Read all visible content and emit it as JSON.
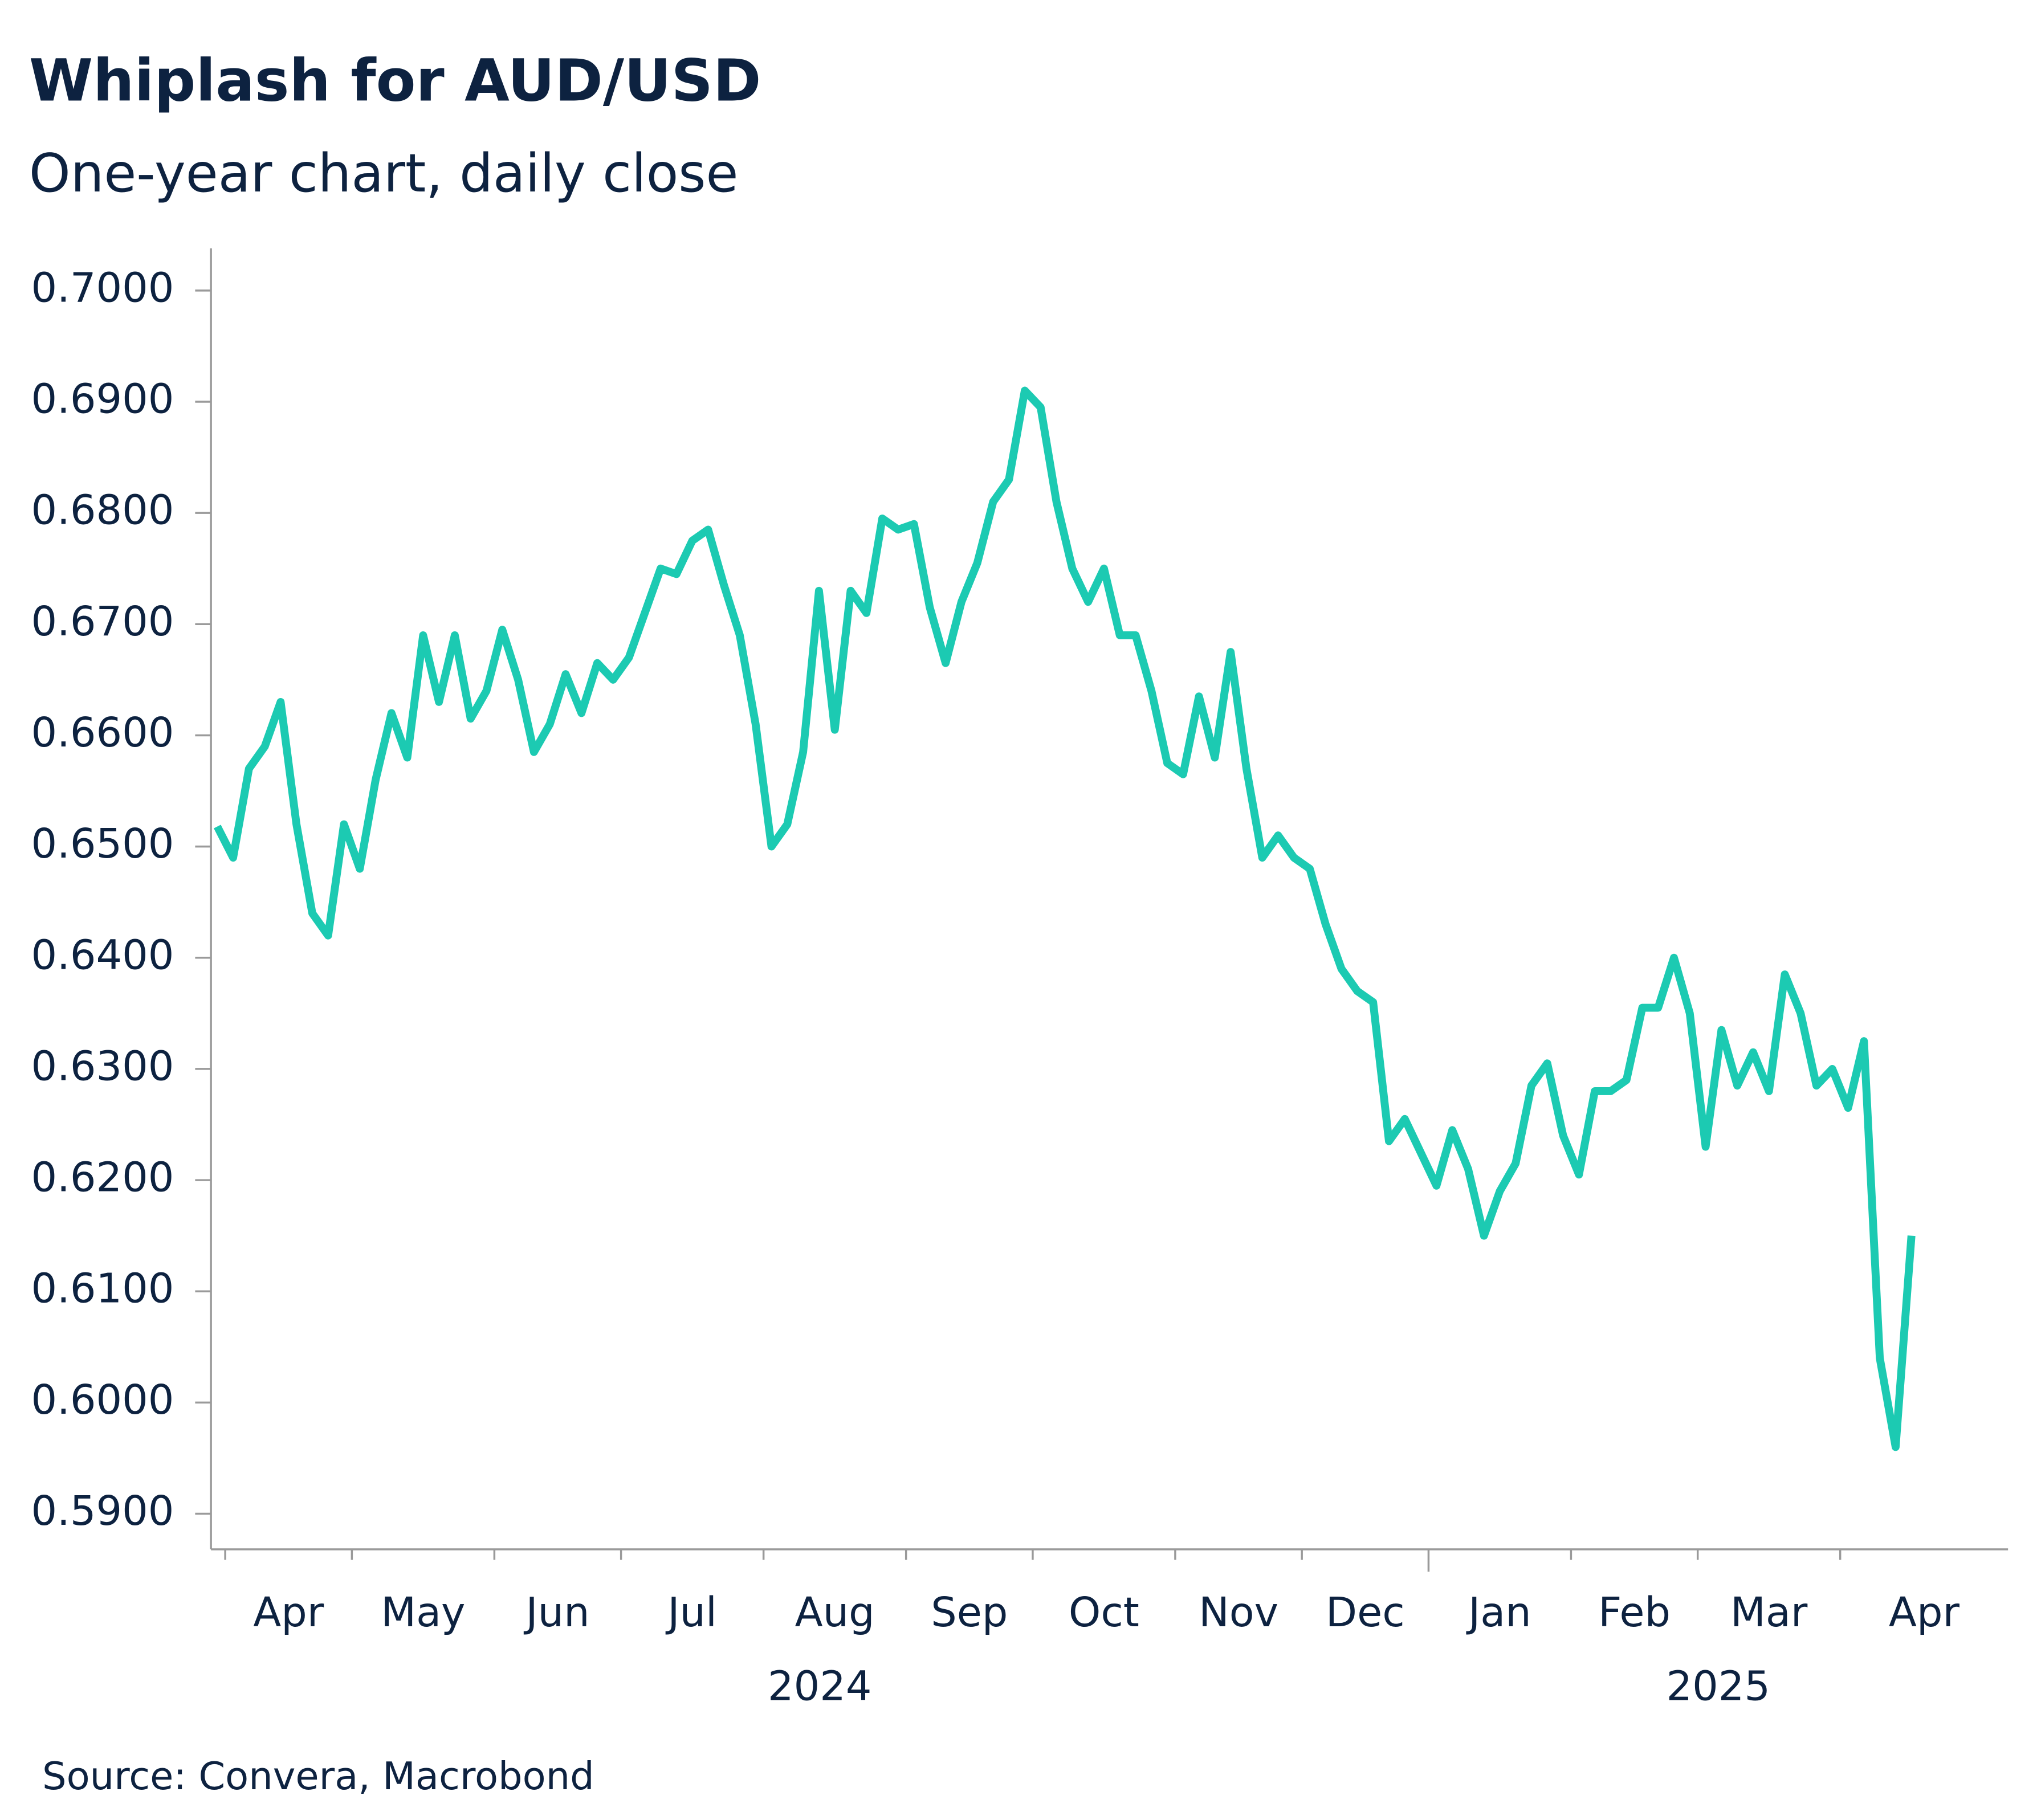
{
  "chart_data": {
    "type": "line",
    "title": "Whiplash for AUD/USD",
    "subtitle": "One-year chart, daily close",
    "source": "Source: Convera, Macrobond",
    "x": [
      "2024-03",
      "2024-04",
      "2024-04",
      "2024-04",
      "2024-04",
      "2024-04",
      "2024-04",
      "2024-04",
      "2024-04",
      "2024-05",
      "2024-05",
      "2024-05",
      "2024-05",
      "2024-05",
      "2024-05",
      "2024-05",
      "2024-05",
      "2024-05",
      "2024-06",
      "2024-06",
      "2024-06",
      "2024-06",
      "2024-06",
      "2024-06",
      "2024-06",
      "2024-06",
      "2024-07",
      "2024-07",
      "2024-07",
      "2024-07",
      "2024-07",
      "2024-07",
      "2024-07",
      "2024-07",
      "2024-07",
      "2024-08",
      "2024-08",
      "2024-08",
      "2024-08",
      "2024-08",
      "2024-08",
      "2024-08",
      "2024-08",
      "2024-08",
      "2024-09",
      "2024-09",
      "2024-09",
      "2024-09",
      "2024-09",
      "2024-09",
      "2024-09",
      "2024-09",
      "2024-10",
      "2024-10",
      "2024-10",
      "2024-10",
      "2024-10",
      "2024-10",
      "2024-10",
      "2024-10",
      "2024-10",
      "2024-11",
      "2024-11",
      "2024-11",
      "2024-11",
      "2024-11",
      "2024-11",
      "2024-11",
      "2024-11",
      "2024-12",
      "2024-12",
      "2024-12",
      "2024-12",
      "2024-12",
      "2024-12",
      "2024-12",
      "2024-12",
      "2025-01",
      "2025-01",
      "2025-01",
      "2025-01",
      "2025-01",
      "2025-01",
      "2025-01",
      "2025-01",
      "2025-01",
      "2025-02",
      "2025-02",
      "2025-02",
      "2025-02",
      "2025-02",
      "2025-02",
      "2025-02",
      "2025-02",
      "2025-03",
      "2025-03",
      "2025-03",
      "2025-03",
      "2025-03",
      "2025-03",
      "2025-03",
      "2025-03",
      "2025-03",
      "2025-04",
      "2025-04",
      "2025-04",
      "2025-04",
      "2025-04"
    ],
    "series": [
      {
        "name": "AUD/USD",
        "color": "#1ccab2",
        "values": [
          0.6518,
          0.649,
          0.657,
          0.659,
          0.663,
          0.652,
          0.644,
          0.642,
          0.652,
          0.648,
          0.656,
          0.662,
          0.658,
          0.669,
          0.663,
          0.669,
          0.6615,
          0.664,
          0.6695,
          0.665,
          0.6585,
          0.661,
          0.6655,
          0.662,
          0.6665,
          0.665,
          0.667,
          0.671,
          0.675,
          0.6745,
          0.6775,
          0.6785,
          0.6735,
          0.669,
          0.661,
          0.65,
          0.652,
          0.6585,
          0.673,
          0.6605,
          0.673,
          0.671,
          0.6795,
          0.6785,
          0.679,
          0.6715,
          0.6665,
          0.672,
          0.6755,
          0.681,
          0.683,
          0.691,
          0.6895,
          0.681,
          0.675,
          0.672,
          0.675,
          0.669,
          0.669,
          0.664,
          0.6575,
          0.6565,
          0.6635,
          0.658,
          0.6675,
          0.657,
          0.649,
          0.651,
          0.649,
          0.648,
          0.643,
          0.639,
          0.637,
          0.636,
          0.6235,
          0.6255,
          0.6225,
          0.6195,
          0.6245,
          0.621,
          0.615,
          0.619,
          0.6215,
          0.6285,
          0.6305,
          0.624,
          0.6205,
          0.628,
          0.628,
          0.629,
          0.6355,
          0.6355,
          0.64,
          0.635,
          0.623,
          0.6335,
          0.6285,
          0.6315,
          0.628,
          0.6385,
          0.635,
          0.6285,
          0.63,
          0.6265,
          0.6325,
          0.604,
          0.596,
          0.615
        ]
      }
    ],
    "month_labels": [
      null,
      "Apr",
      "May",
      "Jun",
      "Jul",
      "Aug",
      "Sep",
      "Oct",
      "Nov",
      "Dec",
      "Jan",
      "Feb",
      "Mar",
      "Apr"
    ],
    "year_labels": [
      "2024",
      "2025"
    ],
    "ylim": [
      0.5868,
      0.7038
    ],
    "yticks": [
      {
        "value": 0.7,
        "label": "0.7000"
      },
      {
        "value": 0.69,
        "label": "0.6900"
      },
      {
        "value": 0.68,
        "label": "0.6800"
      },
      {
        "value": 0.67,
        "label": "0.6700"
      },
      {
        "value": 0.66,
        "label": "0.6600"
      },
      {
        "value": 0.65,
        "label": "0.6500"
      },
      {
        "value": 0.64,
        "label": "0.6400"
      },
      {
        "value": 0.63,
        "label": "0.6300"
      },
      {
        "value": 0.62,
        "label": "0.6200"
      },
      {
        "value": 0.61,
        "label": "0.6100"
      },
      {
        "value": 0.6,
        "label": "0.6000"
      },
      {
        "value": 0.59,
        "label": "0.5900"
      }
    ],
    "grid": false
  }
}
